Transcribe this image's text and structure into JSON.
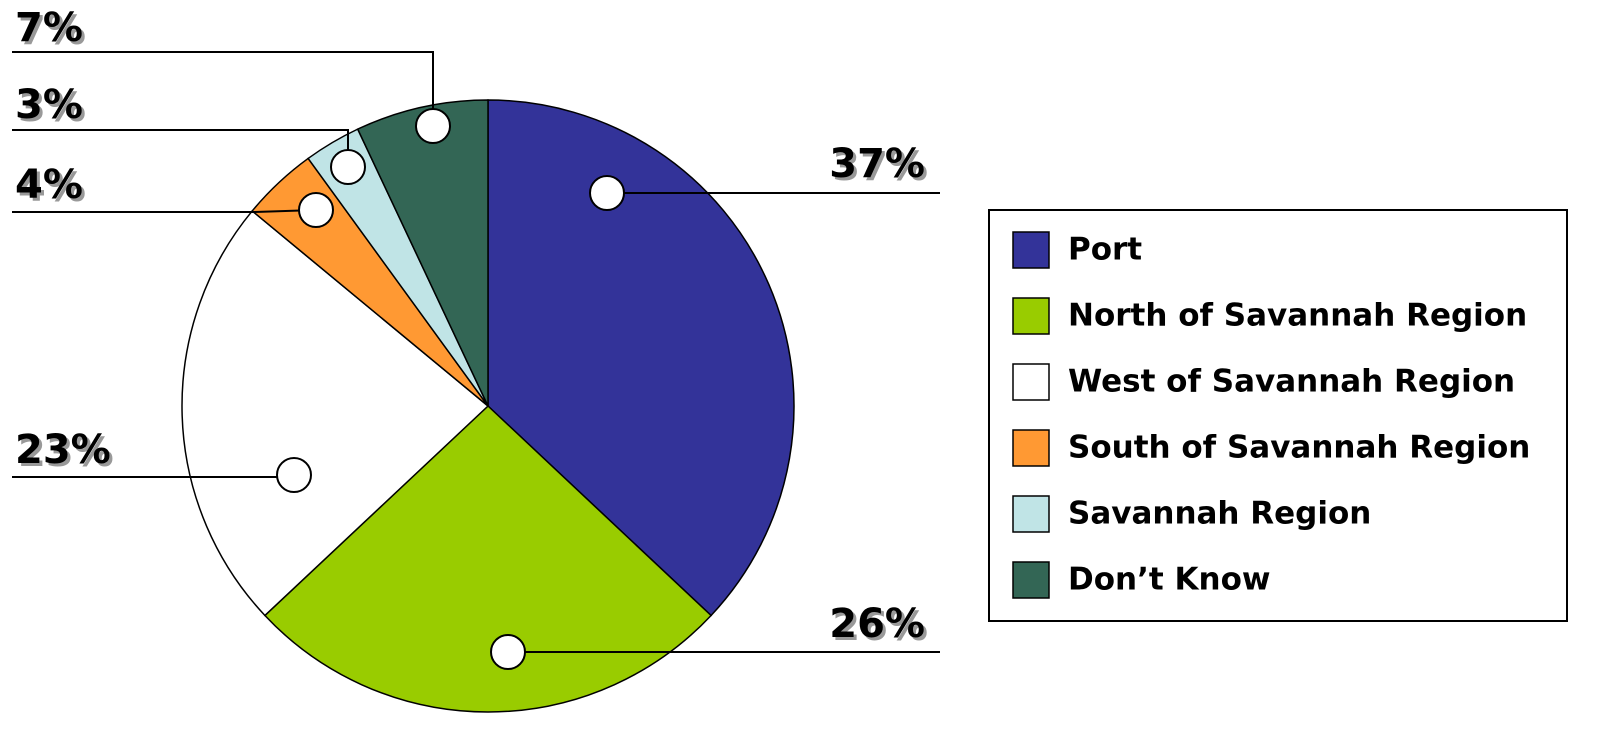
{
  "chart_data": {
    "type": "pie",
    "categories": [
      "Port",
      "North of Savannah Region",
      "West of Savannah Region",
      "South of Savannah Region",
      "Savannah Region",
      "Don’t Know"
    ],
    "values": [
      37,
      26,
      23,
      4,
      3,
      7
    ],
    "value_labels": [
      "37%",
      "26%",
      "23%",
      "4%",
      "3%",
      "7%"
    ],
    "colors": [
      "#333399",
      "#99cc00",
      "#ffffff",
      "#ff9933",
      "#c0e4e6",
      "#336655"
    ],
    "legend": "right"
  }
}
